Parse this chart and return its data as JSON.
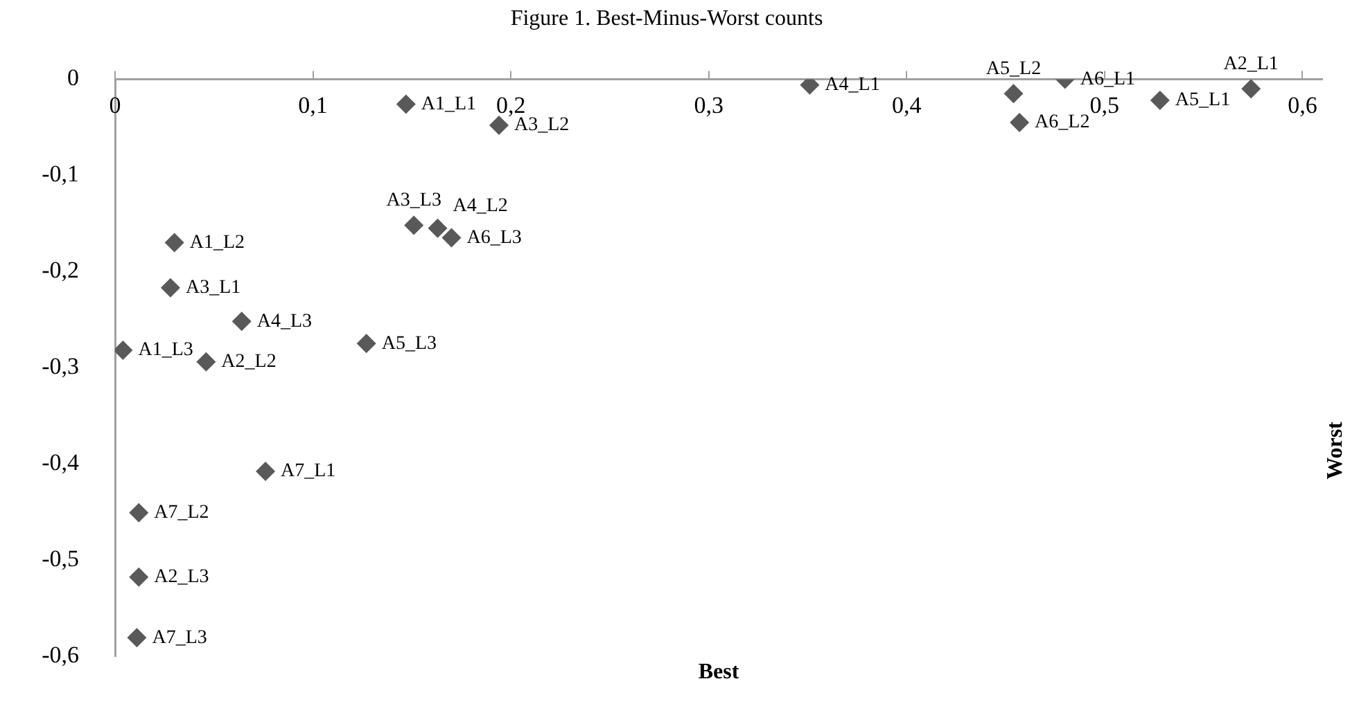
{
  "chart_data": {
    "type": "scatter",
    "title": "Figure 1. Best-Minus-Worst counts",
    "xlabel": "Best",
    "ylabel": "Worst",
    "xlim": [
      0,
      0.61
    ],
    "ylim": [
      -0.6,
      0
    ],
    "xticks": [
      {
        "value": 0,
        "label": "0"
      },
      {
        "value": 0.1,
        "label": "0,1"
      },
      {
        "value": 0.2,
        "label": "0,2"
      },
      {
        "value": 0.3,
        "label": "0,3"
      },
      {
        "value": 0.4,
        "label": "0,4"
      },
      {
        "value": 0.5,
        "label": "0,5"
      },
      {
        "value": 0.6,
        "label": "0,6"
      }
    ],
    "yticks": [
      {
        "value": 0,
        "label": "0"
      },
      {
        "value": -0.1,
        "label": "-0,1"
      },
      {
        "value": -0.2,
        "label": "-0,2"
      },
      {
        "value": -0.3,
        "label": "-0,3"
      },
      {
        "value": -0.4,
        "label": "-0,4"
      },
      {
        "value": -0.5,
        "label": "-0,5"
      },
      {
        "value": -0.6,
        "label": "-0,6"
      }
    ],
    "grid": false,
    "legend": false,
    "marker": "diamond",
    "series": [
      {
        "color": "#595959",
        "x": [
          0.147,
          0.194,
          0.151,
          0.163,
          0.17,
          0.03,
          0.028,
          0.064,
          0.127,
          0.004,
          0.046,
          0.076,
          0.012,
          0.012,
          0.011,
          0.351,
          0.454,
          0.48,
          0.457,
          0.528,
          0.574
        ],
        "values": [
          -0.026,
          -0.048,
          -0.152,
          -0.155,
          -0.165,
          -0.17,
          -0.217,
          -0.252,
          -0.275,
          -0.282,
          -0.294,
          -0.408,
          -0.451,
          -0.518,
          -0.581,
          -0.006,
          -0.015,
          0,
          -0.045,
          -0.022,
          -0.01
        ]
      }
    ],
    "annotations": [
      {
        "text": "A1_L1",
        "x": 0.147,
        "y": -0.026
      },
      {
        "text": "A3_L2",
        "x": 0.194,
        "y": -0.048
      },
      {
        "text": "A3_L3",
        "x": 0.151,
        "y": -0.152
      },
      {
        "text": "A4_L2",
        "x": 0.163,
        "y": -0.155
      },
      {
        "text": "A6_L3",
        "x": 0.17,
        "y": -0.165
      },
      {
        "text": "A1_L2",
        "x": 0.03,
        "y": -0.17
      },
      {
        "text": "A3_L1",
        "x": 0.028,
        "y": -0.217
      },
      {
        "text": "A4_L3",
        "x": 0.064,
        "y": -0.252
      },
      {
        "text": "A5_L3",
        "x": 0.127,
        "y": -0.275
      },
      {
        "text": "A1_L3",
        "x": 0.004,
        "y": -0.282
      },
      {
        "text": "A2_L2",
        "x": 0.046,
        "y": -0.294
      },
      {
        "text": "A7_L1",
        "x": 0.076,
        "y": -0.408
      },
      {
        "text": "A7_L2",
        "x": 0.012,
        "y": -0.451
      },
      {
        "text": "A2_L3",
        "x": 0.012,
        "y": -0.518
      },
      {
        "text": "A7_L3",
        "x": 0.011,
        "y": -0.581
      },
      {
        "text": "A4_L1",
        "x": 0.351,
        "y": -0.006
      },
      {
        "text": "A5_L2",
        "x": 0.454,
        "y": -0.015
      },
      {
        "text": "A6_L1",
        "x": 0.48,
        "y": 0
      },
      {
        "text": "A6_L2",
        "x": 0.457,
        "y": -0.045
      },
      {
        "text": "A5_L1",
        "x": 0.528,
        "y": -0.022
      },
      {
        "text": "A2_L1",
        "x": 0.574,
        "y": -0.01
      }
    ]
  }
}
